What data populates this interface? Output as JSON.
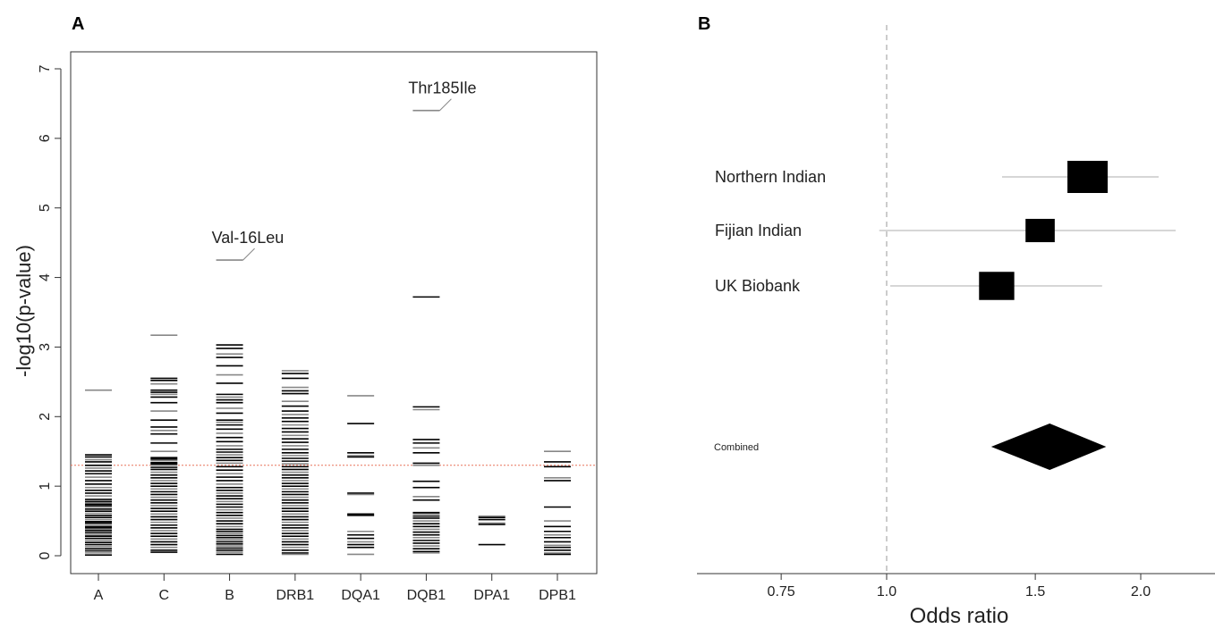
{
  "chart_data": [
    {
      "type": "scatter",
      "panel_label": "A",
      "ylabel": "-log10(p-value)",
      "ylim": [
        0,
        7
      ],
      "yticks": [
        "0",
        "1",
        "2",
        "3",
        "4",
        "5",
        "6",
        "7"
      ],
      "categories": [
        "A",
        "C",
        "B",
        "DRB1",
        "DQA1",
        "DQB1",
        "DPA1",
        "DPB1"
      ],
      "threshold": 1.3,
      "threshold_color": "#e8745a",
      "grid": false,
      "marker": "horizontal dash",
      "series": [
        {
          "category": "A",
          "values": [
            2.38,
            1.45,
            1.42,
            1.38,
            1.35,
            1.3,
            1.26,
            1.22,
            1.18,
            1.13,
            1.08,
            1.03,
            0.98,
            0.94,
            0.9,
            0.86,
            0.81,
            0.78,
            0.76,
            0.74,
            0.72,
            0.7,
            0.67,
            0.64,
            0.61,
            0.58,
            0.55,
            0.52,
            0.49,
            0.47,
            0.45,
            0.42,
            0.4,
            0.38,
            0.36,
            0.33,
            0.3,
            0.28,
            0.25,
            0.22,
            0.19,
            0.16,
            0.13,
            0.1,
            0.07,
            0.04,
            0.01
          ]
        },
        {
          "category": "C",
          "values": [
            3.17,
            2.55,
            2.52,
            2.47,
            2.38,
            2.35,
            2.32,
            2.28,
            2.2,
            2.08,
            1.95,
            1.85,
            1.8,
            1.75,
            1.62,
            1.5,
            1.41,
            1.39,
            1.37,
            1.34,
            1.32,
            1.3,
            1.27,
            1.24,
            1.2,
            1.16,
            1.12,
            1.08,
            1.04,
            1.0,
            0.96,
            0.92,
            0.88,
            0.84,
            0.8,
            0.76,
            0.72,
            0.68,
            0.64,
            0.6,
            0.56,
            0.52,
            0.48,
            0.44,
            0.4,
            0.36,
            0.32,
            0.28,
            0.24,
            0.2,
            0.16,
            0.12,
            0.08,
            0.05
          ]
        },
        {
          "category": "B",
          "values": [
            4.25,
            3.03,
            2.98,
            2.9,
            2.85,
            2.73,
            2.6,
            2.48,
            2.32,
            2.28,
            2.24,
            2.2,
            2.12,
            2.05,
            1.95,
            1.92,
            1.88,
            1.82,
            1.76,
            1.7,
            1.64,
            1.58,
            1.53,
            1.49,
            1.45,
            1.41,
            1.37,
            1.33,
            1.28,
            1.23,
            1.18,
            1.13,
            1.08,
            1.03,
            0.98,
            0.94,
            0.9,
            0.86,
            0.82,
            0.78,
            0.74,
            0.7,
            0.66,
            0.62,
            0.58,
            0.54,
            0.5,
            0.46,
            0.42,
            0.38,
            0.35,
            0.32,
            0.29,
            0.26,
            0.23,
            0.2,
            0.17,
            0.14,
            0.11,
            0.08,
            0.05,
            0.02
          ]
        },
        {
          "category": "DRB1",
          "values": [
            2.66,
            2.62,
            2.55,
            2.42,
            2.37,
            2.33,
            2.22,
            2.15,
            2.08,
            2.03,
            1.98,
            1.93,
            1.88,
            1.83,
            1.78,
            1.73,
            1.68,
            1.63,
            1.58,
            1.53,
            1.48,
            1.44,
            1.4,
            1.36,
            1.32,
            1.28,
            1.24,
            1.2,
            1.16,
            1.12,
            1.08,
            1.04,
            1.0,
            0.96,
            0.92,
            0.88,
            0.84,
            0.8,
            0.76,
            0.72,
            0.68,
            0.64,
            0.6,
            0.56,
            0.52,
            0.48,
            0.44,
            0.4,
            0.36,
            0.32,
            0.28,
            0.24,
            0.2,
            0.16,
            0.12,
            0.08,
            0.04,
            0.02
          ]
        },
        {
          "category": "DQA1",
          "values": [
            2.3,
            1.9,
            1.48,
            1.44,
            1.42,
            0.9,
            0.88,
            0.6,
            0.58,
            0.35,
            0.3,
            0.25,
            0.2,
            0.16,
            0.12,
            0.02
          ]
        },
        {
          "category": "DQB1",
          "values": [
            6.4,
            3.72,
            2.14,
            2.1,
            1.67,
            1.62,
            1.55,
            1.48,
            1.33,
            1.3,
            1.07,
            0.98,
            0.85,
            0.8,
            0.62,
            0.6,
            0.57,
            0.54,
            0.5,
            0.46,
            0.42,
            0.38,
            0.34,
            0.3,
            0.26,
            0.22,
            0.18,
            0.14,
            0.1,
            0.06,
            0.04
          ]
        },
        {
          "category": "DPA1",
          "values": [
            0.57,
            0.55,
            0.52,
            0.47,
            0.45,
            0.16
          ]
        },
        {
          "category": "DPB1",
          "values": [
            1.5,
            1.35,
            1.28,
            1.12,
            1.08,
            0.7,
            0.5,
            0.42,
            0.35,
            0.3,
            0.26,
            0.2,
            0.15,
            0.12,
            0.08,
            0.04,
            0.02
          ]
        }
      ],
      "annotations": [
        {
          "text": "Val-16Leu",
          "category": "B",
          "y": 4.25
        },
        {
          "text": "Thr185Ile",
          "category": "DQB1",
          "y": 6.4
        }
      ]
    },
    {
      "type": "forest",
      "panel_label": "B",
      "xlabel": "Odds ratio",
      "xscale": "log",
      "xticks": [
        0.75,
        1.0,
        1.5,
        2.0
      ],
      "xtick_labels": [
        "0.75",
        "1.0",
        "1.5",
        "2.0"
      ],
      "xlim": [
        0.6,
        2.2
      ],
      "reference_line": 1.0,
      "rows": [
        {
          "label": "Northern Indian",
          "or": 1.73,
          "ci": [
            1.37,
            2.1
          ],
          "weight": 1.0
        },
        {
          "label": "Fijian Indian",
          "or": 1.52,
          "ci": [
            0.98,
            2.2
          ],
          "weight": 0.45
        },
        {
          "label": "UK Biobank",
          "or": 1.35,
          "ci": [
            1.01,
            1.8
          ],
          "weight": 0.75
        }
      ],
      "combined": {
        "label": "Combined",
        "or": 1.56,
        "ci": [
          1.33,
          1.82
        ]
      }
    }
  ]
}
